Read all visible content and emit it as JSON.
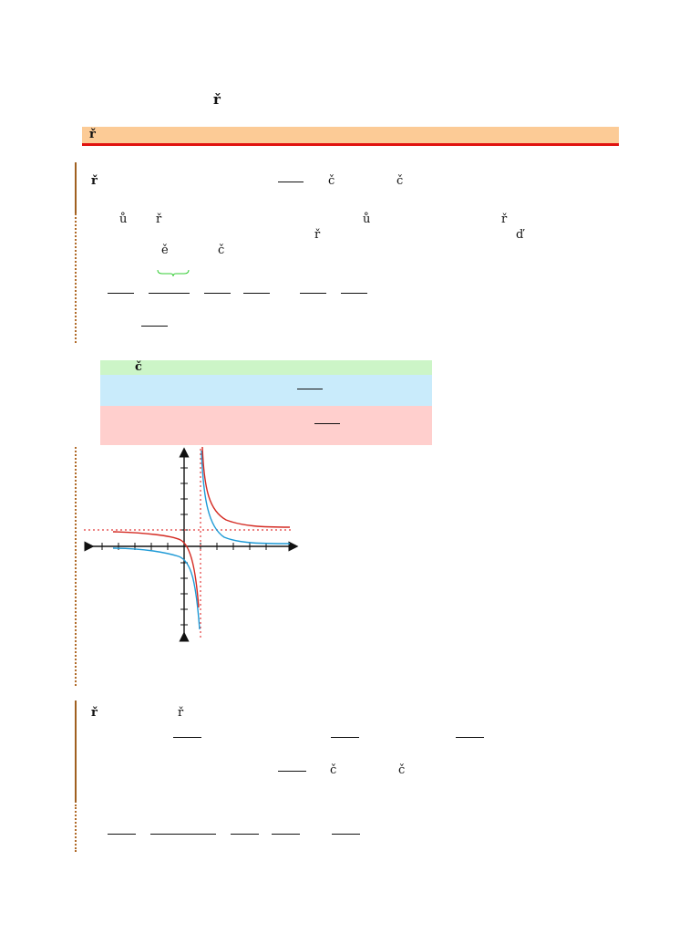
{
  "heading": {
    "glyph": "ř"
  },
  "banner": {
    "glyph": "ř"
  },
  "example1": {
    "intro_glyphs": [
      "ř",
      "č",
      "č"
    ],
    "line2_glyphs": [
      "ů",
      "ř",
      "ů",
      "ř"
    ],
    "line3_glyphs": [
      "ř",
      "ď"
    ],
    "line4_glyphs": [
      "ě",
      "č"
    ]
  },
  "table": {
    "green_row_glyph": "č"
  },
  "graph": {
    "curve_colors": {
      "red": "#d42a22",
      "blue": "#1e9ad6",
      "asymptote": "#e23b3b"
    },
    "asymptote_style": "dotted"
  },
  "example2": {
    "intro_glyphs": [
      "ř",
      "ř"
    ],
    "line3_glyphs": [
      "č",
      "č"
    ]
  }
}
